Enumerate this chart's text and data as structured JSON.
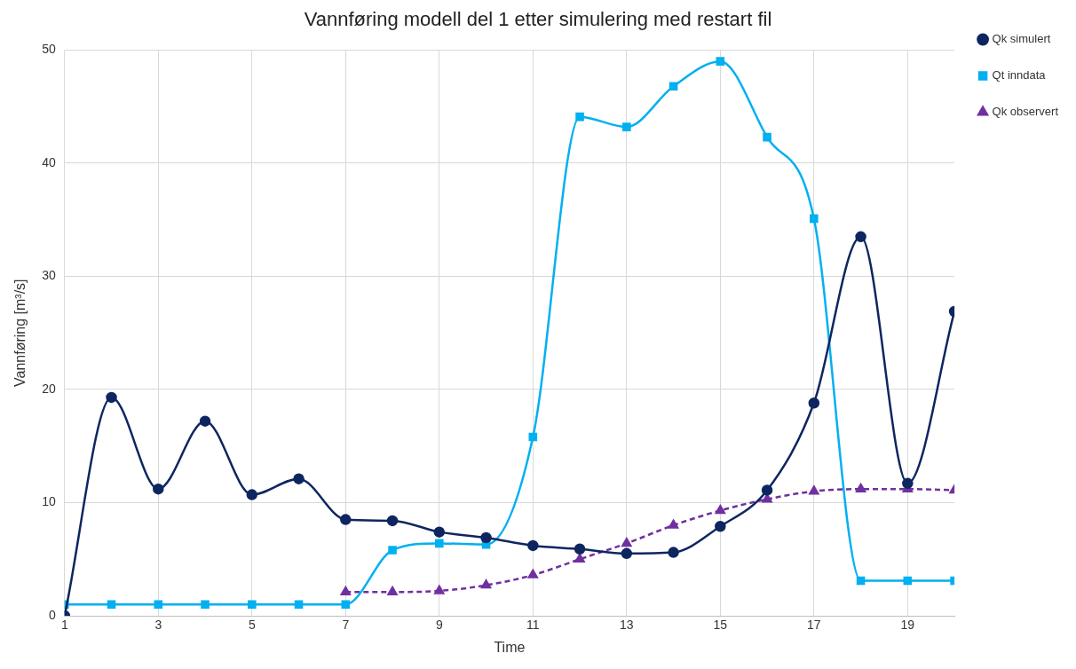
{
  "chart_data": {
    "type": "line",
    "title": "Vannføring modell del 1 etter simulering med restart fil",
    "xlabel": "Time",
    "ylabel": "Vannføring [m³/s]",
    "x": [
      1,
      2,
      3,
      4,
      5,
      6,
      7,
      8,
      9,
      10,
      11,
      12,
      13,
      14,
      15,
      16,
      17,
      18,
      19,
      20
    ],
    "xlim": [
      1,
      20
    ],
    "xticks": [
      1,
      3,
      5,
      7,
      9,
      11,
      13,
      15,
      17,
      19
    ],
    "ylim": [
      0,
      50
    ],
    "yticks": [
      0,
      10,
      20,
      30,
      40,
      50
    ],
    "grid": true,
    "legend": "top right",
    "series": [
      {
        "name": "Qk simulert",
        "color": "#0e2660",
        "marker": "circle",
        "line_style": "solid",
        "values": [
          0,
          19.3,
          11.2,
          17.2,
          10.7,
          12.1,
          8.5,
          8.4,
          7.4,
          6.9,
          6.2,
          5.9,
          5.5,
          5.6,
          7.9,
          11.1,
          18.8,
          33.5,
          11.7,
          26.9
        ]
      },
      {
        "name": "Qt inndata",
        "color": "#00b0f0",
        "marker": "square",
        "line_style": "solid",
        "values": [
          1,
          1,
          1,
          1,
          1,
          1,
          1,
          5.8,
          6.4,
          6.3,
          15.8,
          44.1,
          43.2,
          46.8,
          49,
          42.3,
          35.1,
          3.1,
          3.1,
          3.1
        ]
      },
      {
        "name": "Qk observert",
        "color": "#7030a0",
        "marker": "triangle",
        "line_style": "dashed",
        "values": [
          null,
          null,
          null,
          null,
          null,
          null,
          2.1,
          2.1,
          2.2,
          2.7,
          3.6,
          5.0,
          6.4,
          8.0,
          9.3,
          10.3,
          11.0,
          11.2,
          11.2,
          11.1
        ]
      }
    ]
  }
}
